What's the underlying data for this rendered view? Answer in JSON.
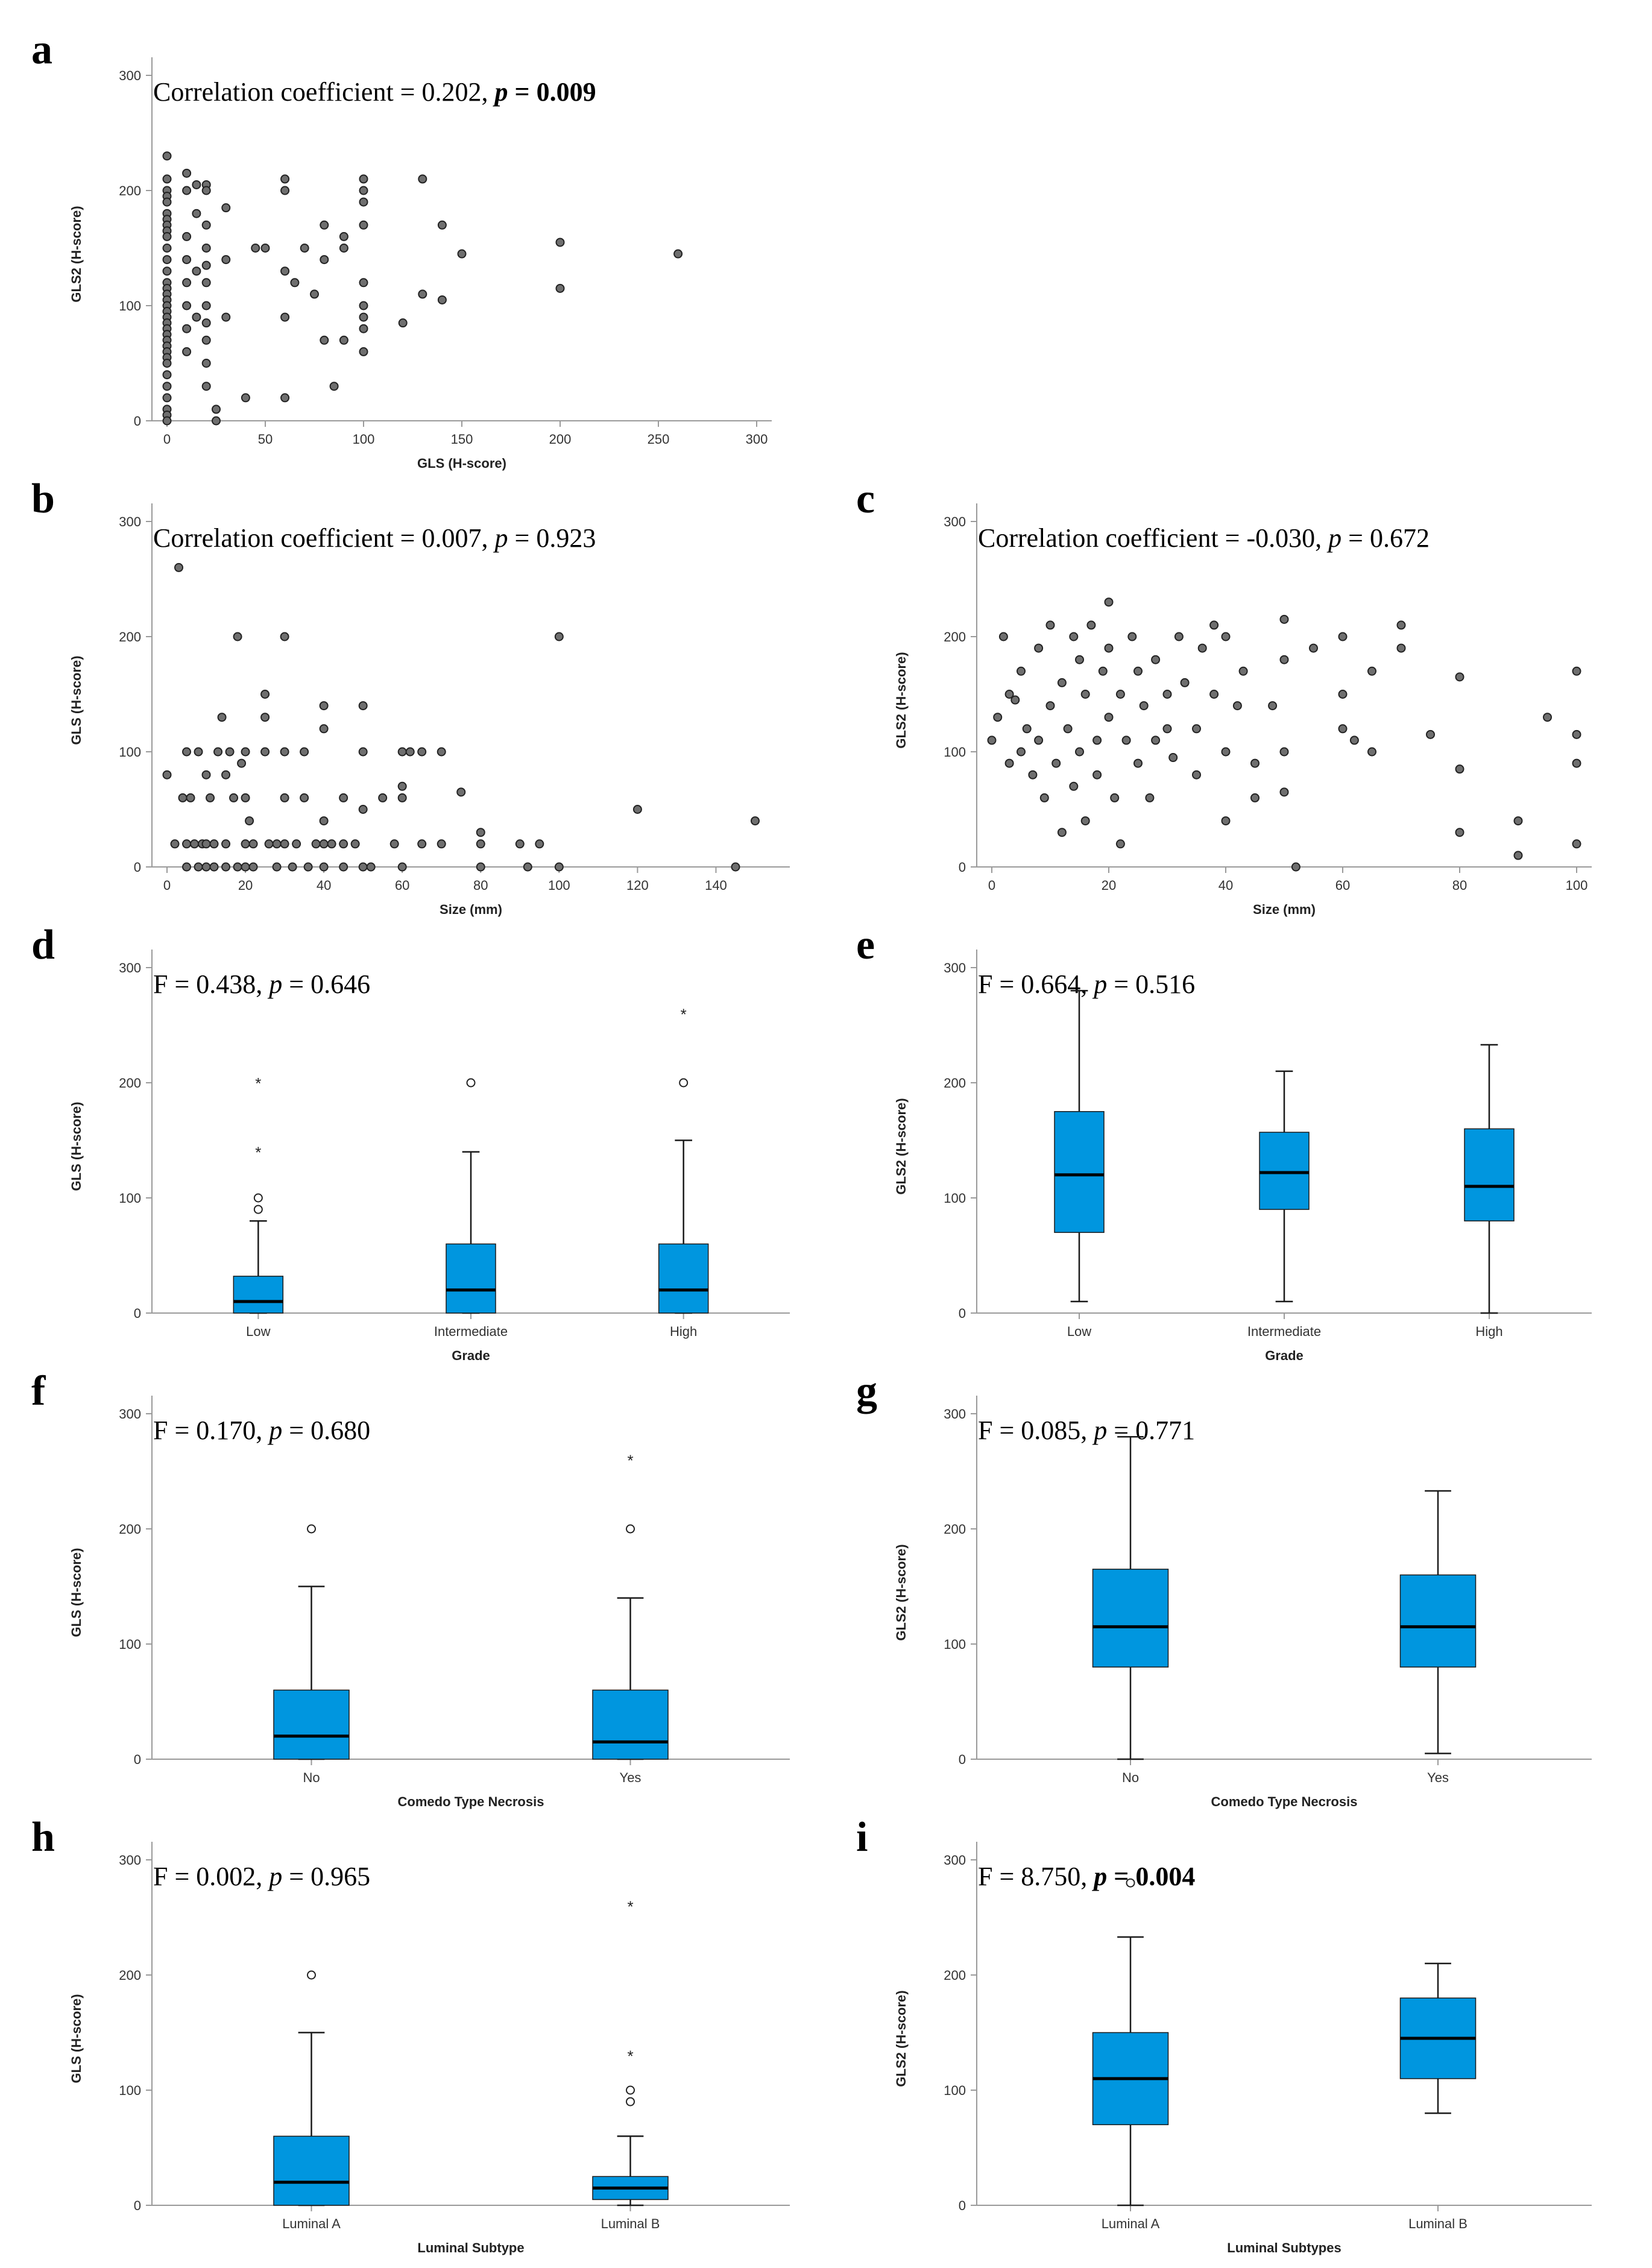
{
  "chart_data": [
    {
      "id": "a",
      "type": "scatter",
      "stat": {
        "prefix": "Correlation coefficient = 0.202, ",
        "p_label": "p",
        "p_value": " = 0.009",
        "bold_p": true
      },
      "xlabel": "GLS (H-score)",
      "ylabel": "GLS2 (H-score)",
      "xlim": [
        0,
        300
      ],
      "ylim": [
        0,
        300
      ],
      "xticks": [
        "0",
        "50",
        "100",
        "150",
        "200",
        "250",
        "300"
      ],
      "yticks": [
        "0",
        "100",
        "200",
        "300"
      ],
      "x": [
        0,
        0,
        0,
        0,
        0,
        0,
        0,
        0,
        0,
        0,
        0,
        0,
        0,
        0,
        0,
        0,
        0,
        0,
        0,
        0,
        0,
        0,
        0,
        0,
        0,
        0,
        0,
        0,
        0,
        0,
        0,
        0,
        0,
        0,
        10,
        10,
        10,
        10,
        10,
        10,
        10,
        10,
        15,
        15,
        15,
        15,
        20,
        20,
        20,
        20,
        20,
        20,
        20,
        20,
        20,
        20,
        20,
        25,
        25,
        30,
        30,
        30,
        40,
        45,
        50,
        60,
        60,
        60,
        60,
        60,
        65,
        70,
        75,
        80,
        80,
        80,
        85,
        90,
        90,
        90,
        100,
        100,
        100,
        100,
        100,
        100,
        100,
        100,
        100,
        120,
        130,
        130,
        140,
        140,
        150,
        200,
        200,
        260
      ],
      "y": [
        230,
        210,
        200,
        195,
        190,
        180,
        175,
        170,
        165,
        160,
        150,
        140,
        130,
        120,
        115,
        110,
        105,
        100,
        95,
        90,
        85,
        80,
        75,
        70,
        65,
        60,
        55,
        50,
        40,
        30,
        20,
        10,
        5,
        0,
        215,
        200,
        160,
        140,
        120,
        100,
        80,
        60,
        205,
        180,
        130,
        90,
        205,
        200,
        170,
        150,
        135,
        120,
        100,
        85,
        70,
        50,
        30,
        10,
        0,
        185,
        140,
        90,
        20,
        150,
        150,
        210,
        200,
        130,
        90,
        20,
        120,
        150,
        110,
        170,
        140,
        70,
        30,
        160,
        150,
        70,
        210,
        200,
        190,
        170,
        120,
        100,
        90,
        80,
        60,
        85,
        210,
        110,
        170,
        105,
        145,
        155,
        115,
        145
      ]
    },
    {
      "id": "b",
      "type": "scatter",
      "stat": {
        "prefix": "Correlation coefficient = 0.007, ",
        "p_label": "p",
        "p_value": " = 0.923",
        "bold_p": false
      },
      "xlabel": "Size (mm)",
      "ylabel": "GLS (H-score)",
      "xlim": [
        0,
        155
      ],
      "ylim": [
        0,
        300
      ],
      "xticks": [
        "0",
        "20",
        "40",
        "60",
        "80",
        "100",
        "120",
        "140"
      ],
      "yticks": [
        "0",
        "100",
        "200",
        "300"
      ],
      "x": [
        0,
        2,
        3,
        4,
        5,
        5,
        5,
        6,
        7,
        8,
        8,
        9,
        10,
        10,
        10,
        11,
        12,
        12,
        13,
        14,
        15,
        15,
        15,
        16,
        17,
        18,
        18,
        19,
        20,
        20,
        20,
        20,
        21,
        22,
        22,
        25,
        25,
        25,
        26,
        28,
        28,
        30,
        30,
        30,
        30,
        32,
        33,
        35,
        35,
        36,
        38,
        40,
        40,
        40,
        40,
        40,
        42,
        45,
        45,
        45,
        48,
        50,
        50,
        50,
        50,
        52,
        55,
        58,
        60,
        60,
        60,
        60,
        62,
        65,
        65,
        70,
        70,
        75,
        80,
        80,
        80,
        90,
        92,
        95,
        100,
        100,
        120,
        145,
        150
      ],
      "y": [
        80,
        20,
        260,
        60,
        20,
        100,
        0,
        60,
        20,
        0,
        100,
        20,
        80,
        20,
        0,
        60,
        20,
        0,
        100,
        130,
        80,
        20,
        0,
        100,
        60,
        200,
        0,
        90,
        100,
        60,
        20,
        0,
        40,
        20,
        0,
        150,
        130,
        100,
        20,
        20,
        0,
        200,
        100,
        60,
        20,
        0,
        20,
        100,
        60,
        0,
        20,
        140,
        120,
        40,
        20,
        0,
        20,
        60,
        20,
        0,
        20,
        140,
        100,
        50,
        0,
        0,
        60,
        20,
        100,
        70,
        60,
        0,
        100,
        100,
        20,
        100,
        20,
        65,
        30,
        20,
        0,
        20,
        0,
        20,
        200,
        0,
        50,
        0,
        40
      ]
    },
    {
      "id": "c",
      "type": "scatter",
      "stat": {
        "prefix": "Correlation coefficient = -0.030, ",
        "p_label": "p",
        "p_value": " = 0.672",
        "bold_p": false
      },
      "xlabel": "Size (mm)",
      "ylabel": "GLS2 (H-score)",
      "xlim": [
        0,
        100
      ],
      "ylim": [
        0,
        300
      ],
      "xticks": [
        "0",
        "20",
        "40",
        "60",
        "80",
        "100"
      ],
      "yticks": [
        "0",
        "100",
        "200",
        "300"
      ],
      "x": [
        0,
        1,
        2,
        3,
        3,
        4,
        5,
        5,
        6,
        7,
        8,
        8,
        9,
        10,
        10,
        11,
        12,
        12,
        13,
        14,
        14,
        15,
        15,
        16,
        16,
        17,
        18,
        18,
        19,
        20,
        20,
        20,
        21,
        22,
        22,
        23,
        24,
        25,
        25,
        26,
        27,
        28,
        28,
        30,
        30,
        31,
        32,
        33,
        35,
        35,
        36,
        38,
        38,
        40,
        40,
        40,
        42,
        43,
        45,
        45,
        48,
        50,
        50,
        50,
        50,
        52,
        55,
        60,
        60,
        60,
        62,
        65,
        65,
        70,
        70,
        75,
        80,
        80,
        80,
        90,
        90,
        95,
        100,
        100,
        100,
        100
      ],
      "y": [
        110,
        130,
        200,
        150,
        90,
        145,
        170,
        100,
        120,
        80,
        190,
        110,
        60,
        210,
        140,
        90,
        30,
        160,
        120,
        200,
        70,
        180,
        100,
        150,
        40,
        210,
        110,
        80,
        170,
        230,
        190,
        130,
        60,
        150,
        20,
        110,
        200,
        170,
        90,
        140,
        60,
        180,
        110,
        150,
        120,
        95,
        200,
        160,
        120,
        80,
        190,
        210,
        150,
        200,
        100,
        40,
        140,
        170,
        60,
        90,
        140,
        215,
        180,
        100,
        65,
        0,
        190,
        200,
        150,
        120,
        110,
        100,
        170,
        210,
        190,
        115,
        165,
        85,
        30,
        40,
        10,
        130,
        170,
        115,
        90,
        20
      ]
    },
    {
      "id": "d",
      "type": "box",
      "stat": {
        "prefix": "F = 0.438, ",
        "p_label": "p",
        "p_value": " = 0.646",
        "bold_p": false
      },
      "xlabel": "Grade",
      "ylabel": "GLS (H-score)",
      "ylim": [
        0,
        300
      ],
      "yticks": [
        "0",
        "100",
        "200",
        "300"
      ],
      "categories": [
        "Low",
        "Intermediate",
        "High"
      ],
      "boxes": [
        {
          "min": 0,
          "q1": 0,
          "median": 10,
          "q3": 32,
          "max": 80,
          "outliers": [
            90,
            100
          ],
          "extremes": [
            140,
            200
          ]
        },
        {
          "min": 0,
          "q1": 0,
          "median": 20,
          "q3": 60,
          "max": 140,
          "outliers": [
            200
          ],
          "extremes": []
        },
        {
          "min": 0,
          "q1": 0,
          "median": 20,
          "q3": 60,
          "max": 150,
          "outliers": [
            200
          ],
          "extremes": [
            260
          ]
        }
      ]
    },
    {
      "id": "e",
      "type": "box",
      "stat": {
        "prefix": "F = 0.664, ",
        "p_label": "p",
        "p_value": " = 0.516",
        "bold_p": false
      },
      "xlabel": "Grade",
      "ylabel": "GLS2 (H-score)",
      "ylim": [
        0,
        300
      ],
      "yticks": [
        "0",
        "100",
        "200",
        "300"
      ],
      "categories": [
        "Low",
        "Intermediate",
        "High"
      ],
      "boxes": [
        {
          "min": 10,
          "q1": 70,
          "median": 120,
          "q3": 175,
          "max": 280,
          "outliers": [],
          "extremes": []
        },
        {
          "min": 10,
          "q1": 90,
          "median": 122,
          "q3": 157,
          "max": 210,
          "outliers": [],
          "extremes": []
        },
        {
          "min": 0,
          "q1": 80,
          "median": 110,
          "q3": 160,
          "max": 233,
          "outliers": [],
          "extremes": []
        }
      ]
    },
    {
      "id": "f",
      "type": "box",
      "stat": {
        "prefix": "F = 0.170, ",
        "p_label": "p",
        "p_value": " = 0.680",
        "bold_p": false
      },
      "xlabel": "Comedo Type Necrosis",
      "ylabel": "GLS (H-score)",
      "ylim": [
        0,
        300
      ],
      "yticks": [
        "0",
        "100",
        "200",
        "300"
      ],
      "categories": [
        "No",
        "Yes"
      ],
      "boxes": [
        {
          "min": 0,
          "q1": 0,
          "median": 20,
          "q3": 60,
          "max": 150,
          "outliers": [
            200
          ],
          "extremes": []
        },
        {
          "min": 0,
          "q1": 0,
          "median": 15,
          "q3": 60,
          "max": 140,
          "outliers": [
            200
          ],
          "extremes": [
            260
          ]
        }
      ]
    },
    {
      "id": "g",
      "type": "box",
      "stat": {
        "prefix": "F = 0.085, ",
        "p_label": "p",
        "p_value": " = 0.771",
        "bold_p": false
      },
      "xlabel": "Comedo Type Necrosis",
      "ylabel": "GLS2 (H-score)",
      "ylim": [
        0,
        300
      ],
      "yticks": [
        "0",
        "100",
        "200",
        "300"
      ],
      "categories": [
        "No",
        "Yes"
      ],
      "boxes": [
        {
          "min": 0,
          "q1": 80,
          "median": 115,
          "q3": 165,
          "max": 280,
          "outliers": [],
          "extremes": []
        },
        {
          "min": 5,
          "q1": 80,
          "median": 115,
          "q3": 160,
          "max": 233,
          "outliers": [],
          "extremes": []
        }
      ]
    },
    {
      "id": "h",
      "type": "box",
      "stat": {
        "prefix": "F = 0.002, ",
        "p_label": "p",
        "p_value": " = 0.965",
        "bold_p": false
      },
      "xlabel": "Luminal Subtype",
      "ylabel": "GLS (H-score)",
      "ylim": [
        0,
        300
      ],
      "yticks": [
        "0",
        "100",
        "200",
        "300"
      ],
      "categories": [
        "Luminal A",
        "Luminal B"
      ],
      "boxes": [
        {
          "min": 0,
          "q1": 0,
          "median": 20,
          "q3": 60,
          "max": 150,
          "outliers": [
            200
          ],
          "extremes": []
        },
        {
          "min": 0,
          "q1": 5,
          "median": 15,
          "q3": 25,
          "max": 60,
          "outliers": [
            90,
            100
          ],
          "extremes": [
            130,
            260
          ]
        }
      ]
    },
    {
      "id": "i",
      "type": "box",
      "stat": {
        "prefix": "F = 8.750, ",
        "p_label": "p",
        "p_value": " = 0.004",
        "bold_p": true
      },
      "xlabel": "Luminal Subtypes",
      "ylabel": "GLS2 (H-score)",
      "ylim": [
        0,
        300
      ],
      "yticks": [
        "0",
        "100",
        "200",
        "300"
      ],
      "categories": [
        "Luminal A",
        "Luminal B"
      ],
      "boxes": [
        {
          "min": 0,
          "q1": 70,
          "median": 110,
          "q3": 150,
          "max": 233,
          "outliers": [
            280
          ],
          "extremes": []
        },
        {
          "min": 80,
          "q1": 110,
          "median": 145,
          "q3": 180,
          "max": 210,
          "outliers": [],
          "extremes": []
        }
      ]
    }
  ]
}
